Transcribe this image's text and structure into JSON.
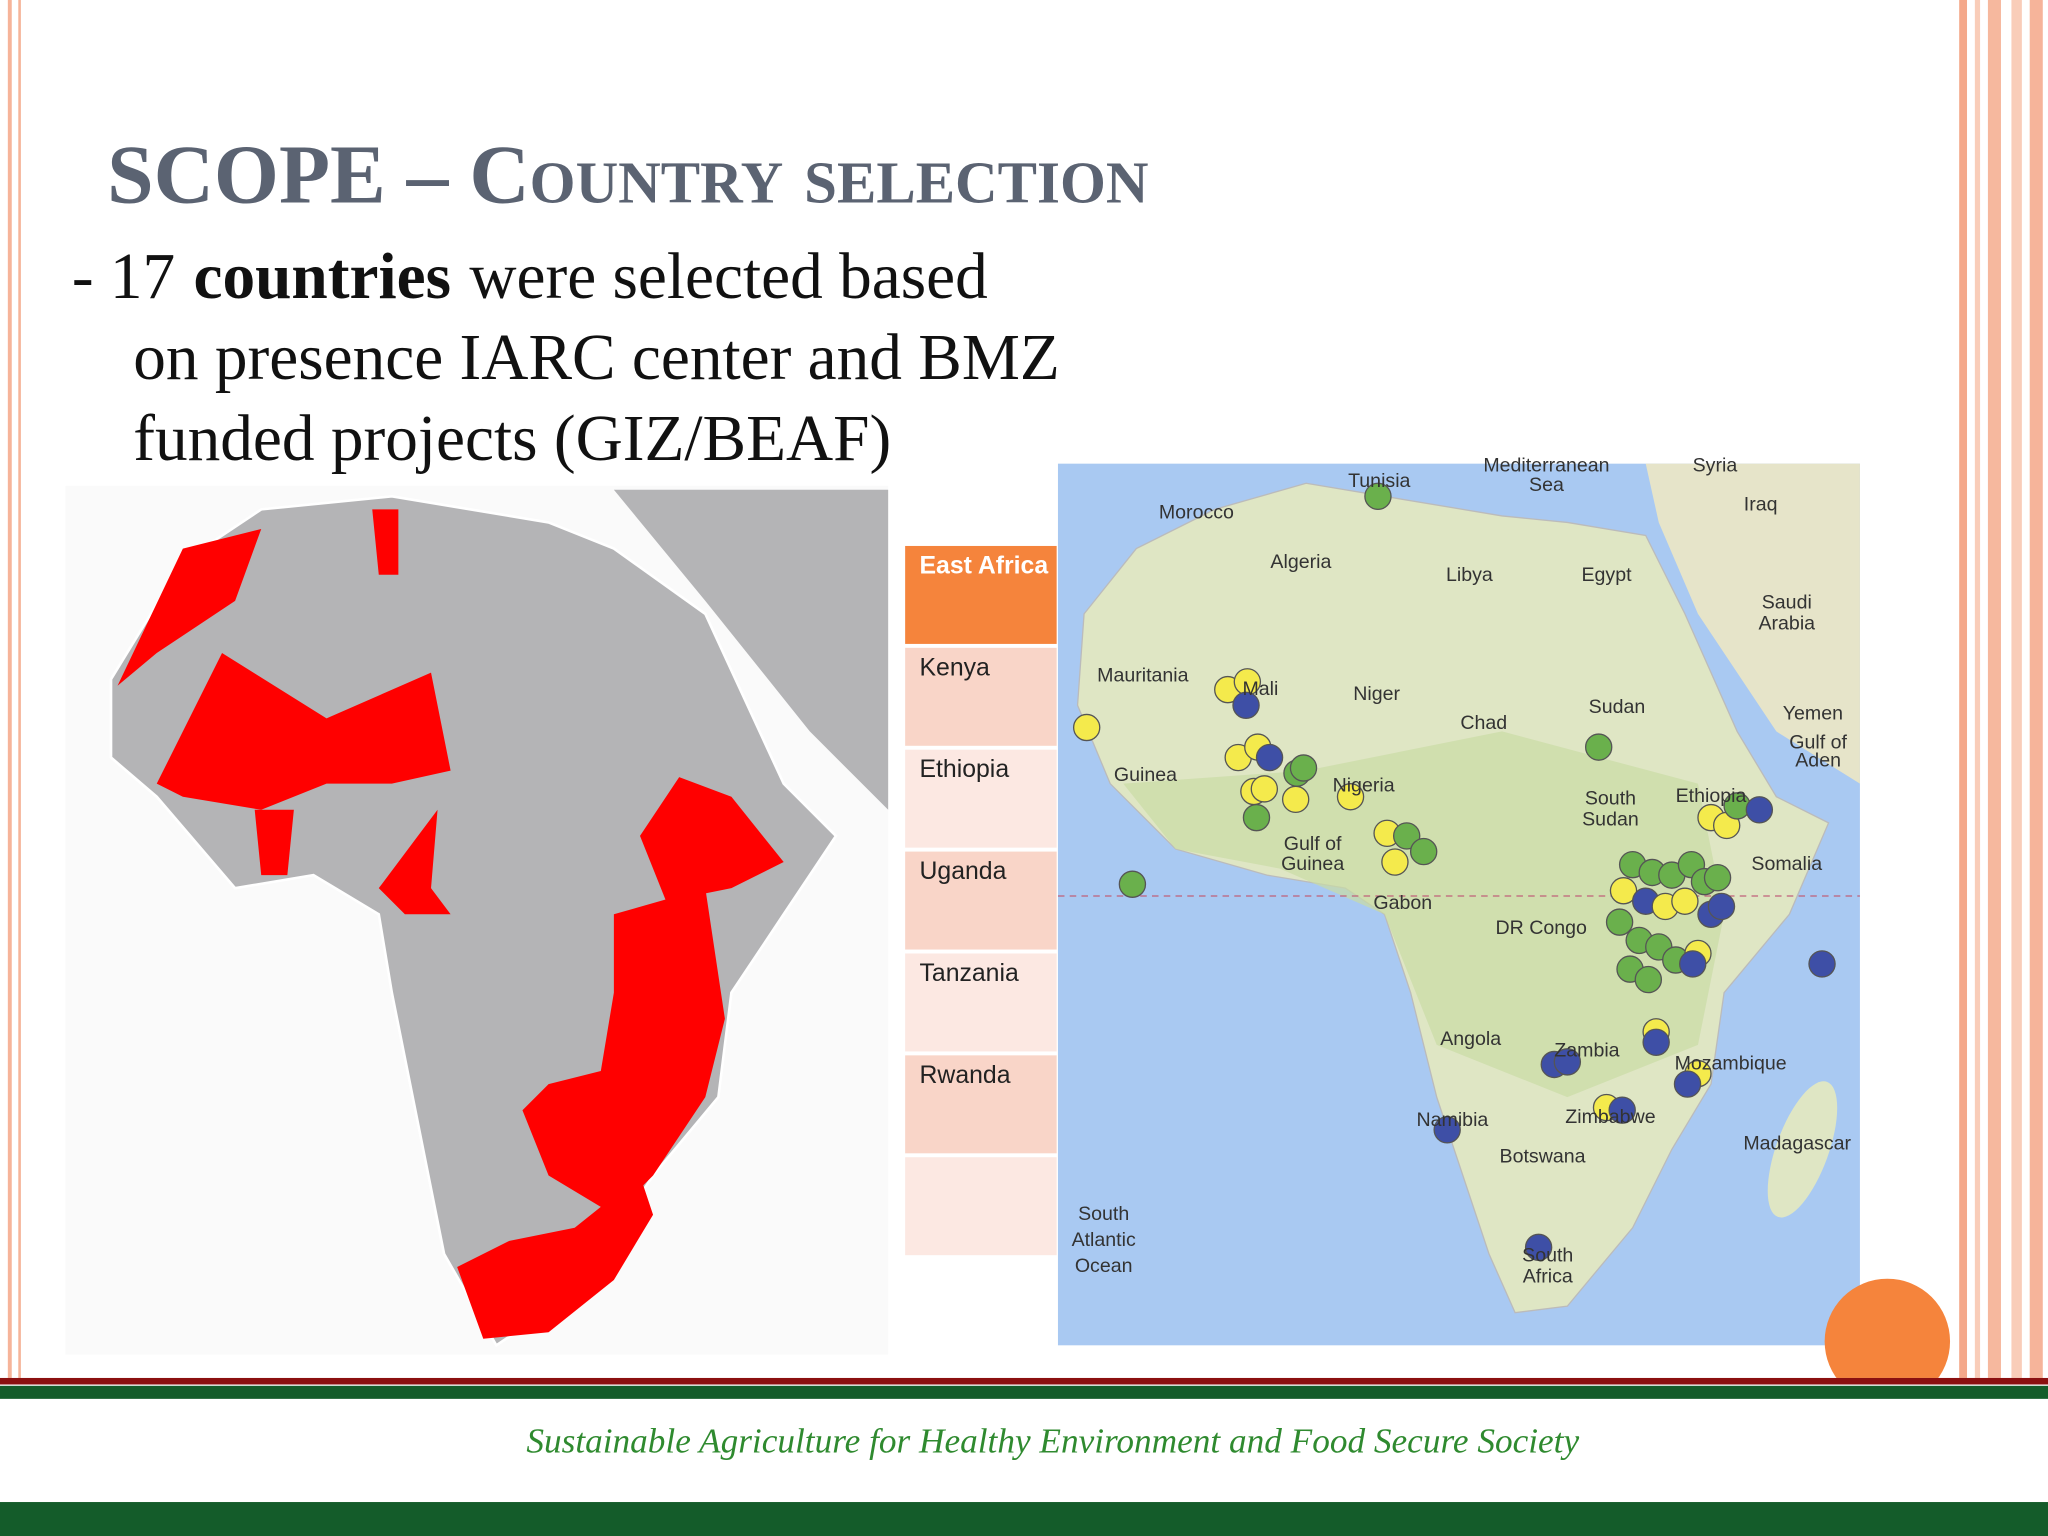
{
  "slide": {
    "title": "SCOPE – Country selection",
    "bullet": {
      "lead": "- 17",
      "bold": "countries",
      "rest": "were selected based",
      "line2": "on presence IARC center and BMZ",
      "line3": "funded projects (GIZ/BEAF)"
    },
    "table": {
      "header": "East Africa",
      "rows": [
        "Kenya",
        "Ethiopia",
        "Uganda",
        "Tanzania",
        "Rwanda"
      ]
    },
    "map": {
      "labels": [
        "Morocco",
        "Algeria",
        "Tunisia",
        "Mediterranean",
        "Sea",
        "Syria",
        "Iraq",
        "Libya",
        "Egypt",
        "Saudi",
        "Arabia",
        "Yemen",
        "Gulf of",
        "Aden",
        "Mauritania",
        "Mali",
        "Niger",
        "Chad",
        "Sudan",
        "Guinea",
        "Nigeria",
        "South",
        "Sudan",
        "Ethiopia",
        "Somalia",
        "Gulf of",
        "Guinea",
        "Gabon",
        "DR Congo",
        "Angola",
        "Zambia",
        "Mozambique",
        "Madagascar",
        "Namibia",
        "Zimbabwe",
        "Botswana",
        "South",
        "Africa",
        "South",
        "Atlantic",
        "Ocean"
      ]
    },
    "footer": "Sustainable Agriculture for Healthy Environment and Food Secure Society"
  }
}
